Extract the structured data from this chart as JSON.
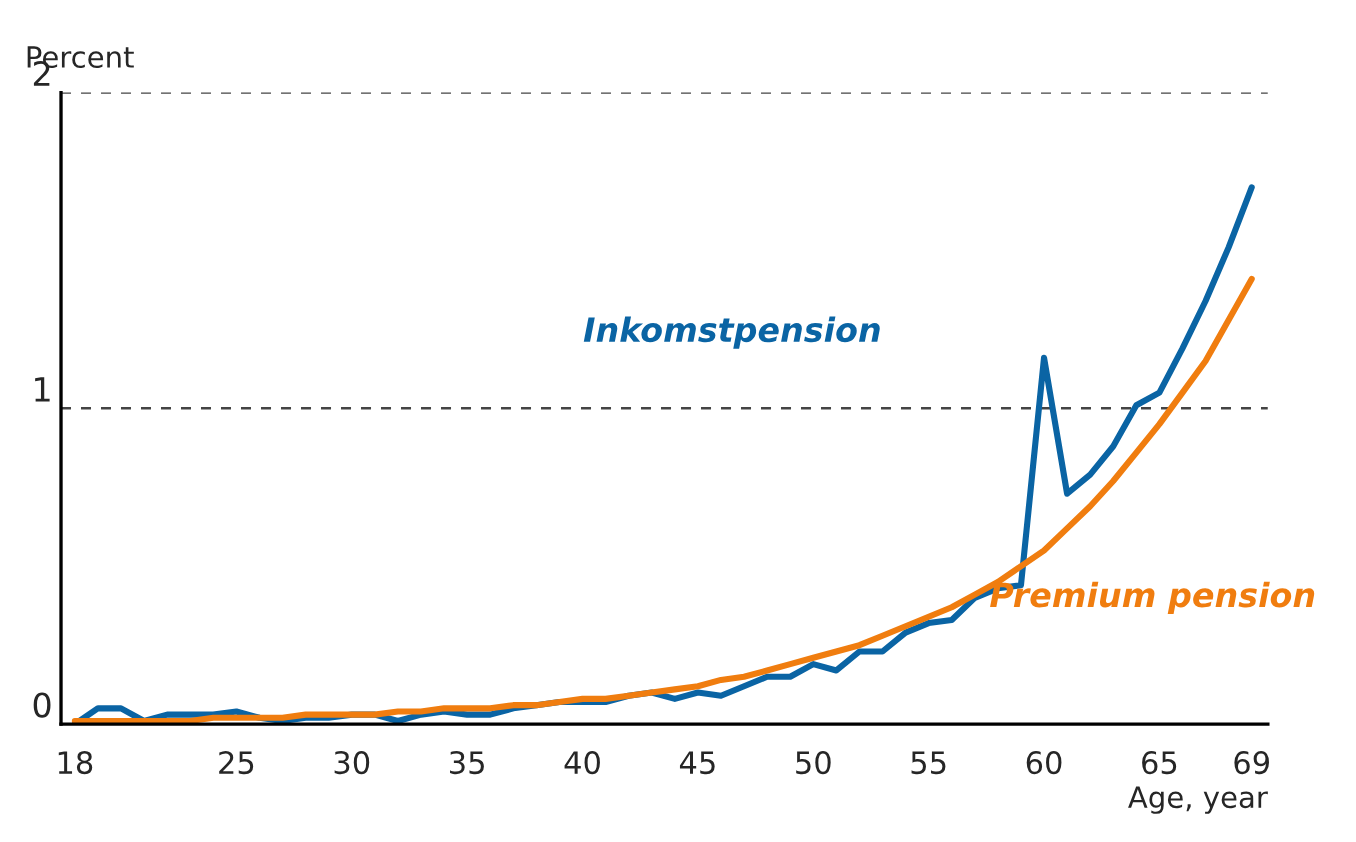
{
  "chart_data": {
    "type": "line",
    "xlabel": "Age, year",
    "ylabel": "Percent",
    "x": [
      18,
      19,
      20,
      21,
      22,
      23,
      24,
      25,
      26,
      27,
      28,
      29,
      30,
      31,
      32,
      33,
      34,
      35,
      36,
      37,
      38,
      39,
      40,
      41,
      42,
      43,
      44,
      45,
      46,
      47,
      48,
      49,
      50,
      51,
      52,
      53,
      54,
      55,
      56,
      57,
      58,
      59,
      60,
      61,
      62,
      63,
      64,
      65,
      66,
      67,
      68,
      69
    ],
    "series": [
      {
        "name": "Inkomstpension",
        "color": "#0a64a4",
        "values": [
          0,
          0.05,
          0.05,
          0.01,
          0.03,
          0.03,
          0.03,
          0.04,
          0.02,
          0.01,
          0.02,
          0.02,
          0.03,
          0.03,
          0.01,
          0.03,
          0.04,
          0.03,
          0.03,
          0.05,
          0.06,
          0.07,
          0.07,
          0.07,
          0.09,
          0.1,
          0.08,
          0.1,
          0.09,
          0.12,
          0.15,
          0.15,
          0.19,
          0.17,
          0.23,
          0.23,
          0.29,
          0.32,
          0.33,
          0.4,
          0.43,
          0.44,
          1.16,
          0.73,
          0.79,
          0.88,
          1.01,
          1.05,
          1.19,
          1.34,
          1.51,
          1.7
        ]
      },
      {
        "name": "Premium pension",
        "color": "#f07d0f",
        "values": [
          0.01,
          0.01,
          0.01,
          0.01,
          0.01,
          0.01,
          0.02,
          0.02,
          0.02,
          0.02,
          0.03,
          0.03,
          0.03,
          0.03,
          0.04,
          0.04,
          0.05,
          0.05,
          0.05,
          0.06,
          0.06,
          0.07,
          0.08,
          0.08,
          0.09,
          0.1,
          0.11,
          0.12,
          0.14,
          0.15,
          0.17,
          0.19,
          0.21,
          0.23,
          0.25,
          0.28,
          0.31,
          0.34,
          0.37,
          0.41,
          0.45,
          0.5,
          0.55,
          0.62,
          0.69,
          0.77,
          0.86,
          0.95,
          1.05,
          1.15,
          1.28,
          1.41
        ]
      }
    ],
    "xlim": [
      17.4,
      69.7
    ],
    "xticks": [
      18,
      25,
      30,
      35,
      40,
      45,
      50,
      55,
      60,
      65,
      69
    ],
    "ylim": [
      0,
      2
    ],
    "yticks": [
      0,
      1,
      2
    ],
    "grid": "y",
    "legend": false,
    "line_style": "solid",
    "marker": "none"
  }
}
